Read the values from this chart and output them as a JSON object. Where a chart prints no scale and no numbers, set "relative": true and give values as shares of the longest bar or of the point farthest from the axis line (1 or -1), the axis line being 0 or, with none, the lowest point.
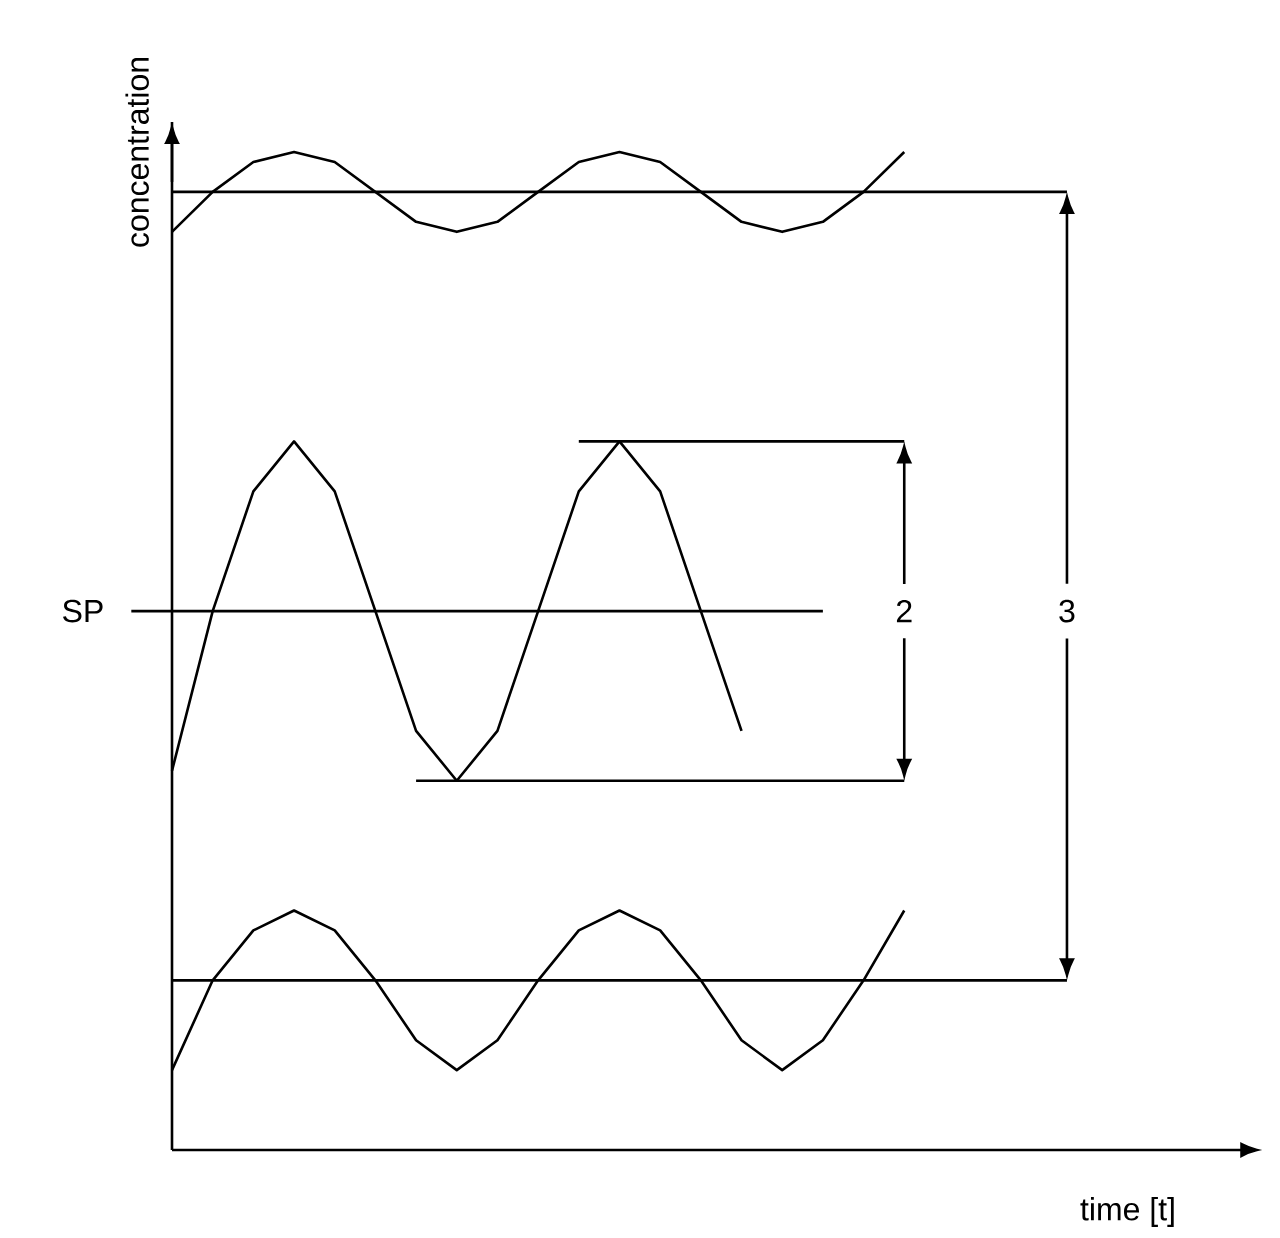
{
  "chart_data": {
    "type": "line",
    "relative": true,
    "xlabel": "time [t]",
    "ylabel": "concentration",
    "line_style": "solid",
    "categories": [
      null,
      null,
      null,
      null,
      null,
      null,
      null,
      null,
      null,
      null,
      null,
      null,
      null,
      null,
      null,
      null,
      null,
      null,
      null,
      null,
      null,
      null,
      null,
      null
    ],
    "series": [
      {
        "color": "#000000",
        "values": [
          null,
          0.92,
          0.96,
          0.99,
          1.0,
          0.99,
          0.96,
          0.93,
          0.92,
          0.93,
          0.96,
          0.99,
          1.0,
          0.99,
          0.96,
          0.93,
          0.92,
          0.93,
          0.96,
          1.0,
          null,
          null,
          null,
          null
        ]
      },
      {
        "color": "#000000",
        "values": [
          null,
          0.96,
          0.96,
          0.96,
          0.96,
          0.96,
          0.96,
          0.96,
          0.96,
          0.96,
          0.96,
          0.96,
          0.96,
          0.96,
          0.96,
          0.96,
          0.96,
          0.96,
          0.96,
          0.96,
          0.96,
          0.96,
          0.96,
          0.96
        ]
      },
      {
        "color": "#000000",
        "values": [
          null,
          0.38,
          0.54,
          0.66,
          0.71,
          0.66,
          0.54,
          0.42,
          0.37,
          0.42,
          0.54,
          0.66,
          0.71,
          0.66,
          0.54,
          0.42,
          null,
          null,
          null,
          null,
          null,
          null,
          null,
          null
        ]
      },
      {
        "color": "#000000",
        "values": [
          0.54,
          0.54,
          0.54,
          0.54,
          0.54,
          0.54,
          0.54,
          0.54,
          0.54,
          0.54,
          0.54,
          0.54,
          0.54,
          0.54,
          0.54,
          0.54,
          0.54,
          0.54,
          null,
          null,
          null,
          null,
          null,
          null
        ]
      },
      {
        "color": "#000000",
        "values": [
          null,
          null,
          null,
          null,
          null,
          null,
          null,
          null,
          null,
          null,
          null,
          0.71,
          0.71,
          0.71,
          0.71,
          0.71,
          0.71,
          0.71,
          0.71,
          0.71,
          null,
          null,
          null,
          null
        ]
      },
      {
        "color": "#000000",
        "values": [
          null,
          null,
          null,
          null,
          null,
          null,
          null,
          0.37,
          0.37,
          0.37,
          0.37,
          0.37,
          0.37,
          0.37,
          0.37,
          0.37,
          0.37,
          0.37,
          0.37,
          0.37,
          null,
          null,
          null,
          null
        ]
      },
      {
        "color": "#000000",
        "values": [
          null,
          0.08,
          0.17,
          0.22,
          0.24,
          0.22,
          0.17,
          0.11,
          0.08,
          0.11,
          0.17,
          0.22,
          0.24,
          0.22,
          0.17,
          0.11,
          0.08,
          0.11,
          0.17,
          0.24,
          null,
          null,
          null,
          null
        ]
      },
      {
        "color": "#000000",
        "values": [
          null,
          0.17,
          0.17,
          0.17,
          0.17,
          0.17,
          0.17,
          0.17,
          0.17,
          0.17,
          0.17,
          0.17,
          0.17,
          0.17,
          0.17,
          0.17,
          0.17,
          0.17,
          0.17,
          0.17,
          0.17,
          0.17,
          0.17,
          0.17
        ]
      }
    ],
    "annotations": [
      "SP",
      "2",
      "3"
    ]
  }
}
